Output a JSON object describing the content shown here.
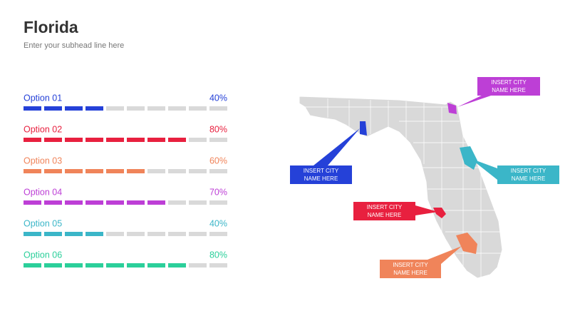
{
  "header": {
    "title": "Florida",
    "subtitle": "Enter your subhead line here"
  },
  "options": [
    {
      "label": "Option 01",
      "value": 40,
      "value_label": "40%",
      "color": "#2541d8"
    },
    {
      "label": "Option 02",
      "value": 80,
      "value_label": "80%",
      "color": "#e8203f"
    },
    {
      "label": "Option 03",
      "value": 60,
      "value_label": "60%",
      "color": "#f0845a"
    },
    {
      "label": "Option 04",
      "value": 70,
      "value_label": "70%",
      "color": "#bd3fd6"
    },
    {
      "label": "Option 05",
      "value": 40,
      "value_label": "40%",
      "color": "#3bb6c8"
    },
    {
      "label": "Option 06",
      "value": 80,
      "value_label": "80%",
      "color": "#2bcf9a"
    }
  ],
  "callouts": [
    {
      "lines": [
        "INSERT CITY",
        "NAME HERE"
      ],
      "color": "#bd3fd6"
    },
    {
      "lines": [
        "INSERT CITY",
        "NAME HERE"
      ],
      "color": "#2541d8"
    },
    {
      "lines": [
        "INSERT CITY",
        "NAME HERE"
      ],
      "color": "#3bb6c8"
    },
    {
      "lines": [
        "INSERT CITY",
        "NAME HERE"
      ],
      "color": "#e8203f"
    },
    {
      "lines": [
        "INSERT CITY",
        "NAME HERE"
      ],
      "color": "#f0845a"
    }
  ]
}
